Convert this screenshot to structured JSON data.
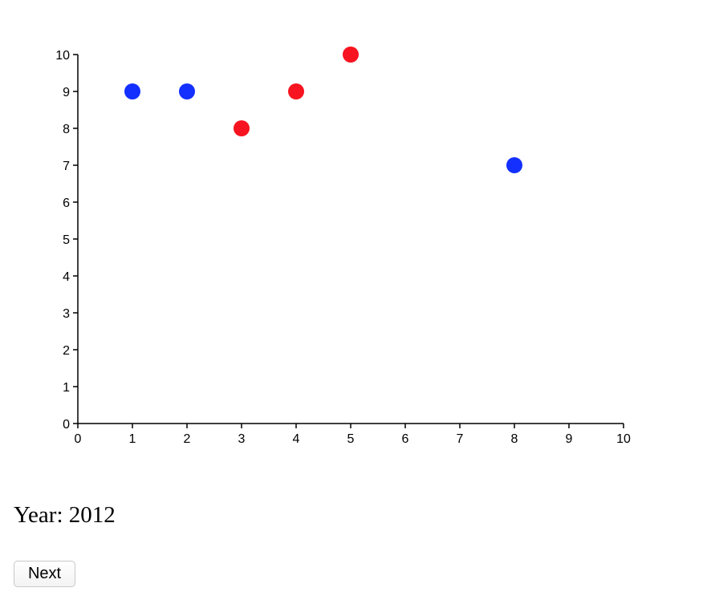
{
  "chart_data": {
    "type": "scatter",
    "title": "",
    "xlabel": "",
    "ylabel": "",
    "xlim": [
      0,
      10
    ],
    "ylim": [
      0,
      10
    ],
    "x_ticks": [
      "0",
      "1",
      "2",
      "3",
      "4",
      "5",
      "6",
      "7",
      "8",
      "9",
      "10"
    ],
    "y_ticks": [
      "0",
      "1",
      "2",
      "3",
      "4",
      "5",
      "6",
      "7",
      "8",
      "9",
      "10"
    ],
    "grid": false,
    "points": [
      {
        "x": 1,
        "y": 9,
        "color": "#1330ff"
      },
      {
        "x": 2,
        "y": 9,
        "color": "#1330ff"
      },
      {
        "x": 3,
        "y": 8,
        "color": "#f7131f"
      },
      {
        "x": 4,
        "y": 9,
        "color": "#f7131f"
      },
      {
        "x": 5,
        "y": 10,
        "color": "#f7131f"
      },
      {
        "x": 8,
        "y": 7,
        "color": "#1330ff"
      }
    ]
  },
  "year": {
    "text": "Year: 2012"
  },
  "controls": {
    "next_label": "Next"
  }
}
